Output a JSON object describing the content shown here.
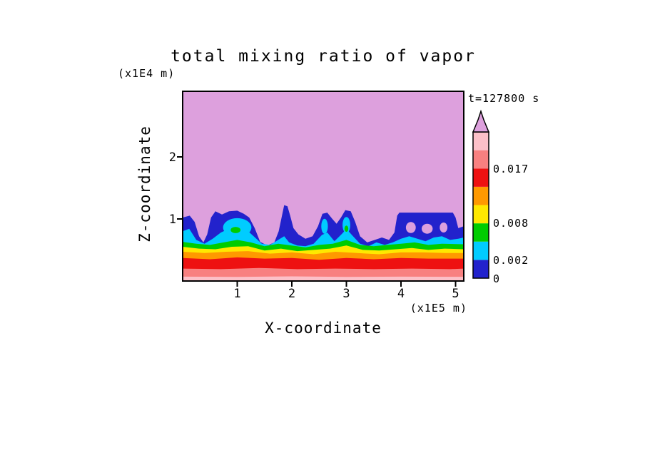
{
  "figure": {
    "title": "total mixing ratio of vapor",
    "time_label": "t=127800 s",
    "y_axis": {
      "label": "Z-coordinate",
      "units_label": "(x1E4 m)",
      "ticks": [
        "1",
        "2"
      ]
    },
    "x_axis": {
      "label": "X-coordinate",
      "units_label": "(x1E5 m)",
      "ticks": [
        "1",
        "2",
        "3",
        "4",
        "5"
      ]
    }
  },
  "colorbar": {
    "labels_top_to_bottom": [
      "0.017",
      "0.008",
      "0.002",
      "0"
    ],
    "arrow_color": "#DDA0DD"
  },
  "chart_data": {
    "type": "heatmap",
    "title": "total mixing ratio of vapor",
    "xlabel": "X-coordinate (x1E5 m)",
    "ylabel": "Z-coordinate (x1E4 m)",
    "time_label": "t=127800 s",
    "x_range": [
      0,
      5.15
    ],
    "z_range": [
      0,
      3.05
    ],
    "x_ticks": [
      1,
      2,
      3,
      4,
      5
    ],
    "z_ticks": [
      1,
      2
    ],
    "contour_levels": [
      0,
      0.002,
      0.005,
      0.008,
      0.011,
      0.014,
      0.017,
      0.02
    ],
    "level_colors_low_to_high": [
      "#2222CC",
      "#00CCFF",
      "#00CC00",
      "#FFE800",
      "#FF9900",
      "#EE1111",
      "#F88080",
      "#FCC0C8"
    ],
    "background_color": "#DDA0DD",
    "bands": [
      {
        "name": "blue-0-0.002",
        "color": "#2222CC",
        "top": [
          [
            0,
            1.02
          ],
          [
            0.13,
            1.05
          ],
          [
            0.22,
            0.95
          ],
          [
            0.3,
            0.72
          ],
          [
            0.38,
            0.62
          ],
          [
            0.45,
            0.75
          ],
          [
            0.52,
            1.02
          ],
          [
            0.6,
            1.12
          ],
          [
            0.72,
            1.07
          ],
          [
            0.85,
            1.12
          ],
          [
            1.0,
            1.13
          ],
          [
            1.12,
            1.08
          ],
          [
            1.22,
            1.02
          ],
          [
            1.32,
            0.85
          ],
          [
            1.42,
            0.63
          ],
          [
            1.55,
            0.57
          ],
          [
            1.68,
            0.62
          ],
          [
            1.76,
            0.8
          ],
          [
            1.82,
            1.05
          ],
          [
            1.86,
            1.22
          ],
          [
            1.92,
            1.2
          ],
          [
            1.97,
            1.05
          ],
          [
            2.03,
            0.85
          ],
          [
            2.12,
            0.75
          ],
          [
            2.25,
            0.68
          ],
          [
            2.38,
            0.72
          ],
          [
            2.48,
            0.88
          ],
          [
            2.56,
            1.08
          ],
          [
            2.65,
            1.1
          ],
          [
            2.74,
            1.0
          ],
          [
            2.82,
            0.92
          ],
          [
            2.9,
            1.02
          ],
          [
            2.98,
            1.14
          ],
          [
            3.08,
            1.12
          ],
          [
            3.16,
            0.95
          ],
          [
            3.25,
            0.72
          ],
          [
            3.38,
            0.62
          ],
          [
            3.52,
            0.66
          ],
          [
            3.65,
            0.7
          ],
          [
            3.78,
            0.66
          ],
          [
            3.88,
            0.78
          ],
          [
            3.93,
            1.05
          ],
          [
            3.97,
            1.1
          ],
          [
            4.3,
            1.1
          ],
          [
            4.6,
            1.1
          ],
          [
            4.95,
            1.1
          ],
          [
            5.0,
            1.02
          ],
          [
            5.05,
            0.85
          ],
          [
            5.15,
            0.88
          ]
        ]
      },
      {
        "name": "cyan-0.002-0.005",
        "color": "#00CCFF",
        "top": [
          [
            0,
            0.8
          ],
          [
            0.12,
            0.84
          ],
          [
            0.25,
            0.66
          ],
          [
            0.4,
            0.6
          ],
          [
            0.55,
            0.68
          ],
          [
            0.7,
            0.78
          ],
          [
            0.85,
            0.84
          ],
          [
            1.0,
            0.88
          ],
          [
            1.15,
            0.84
          ],
          [
            1.3,
            0.72
          ],
          [
            1.45,
            0.6
          ],
          [
            1.6,
            0.58
          ],
          [
            1.75,
            0.66
          ],
          [
            1.86,
            0.72
          ],
          [
            1.95,
            0.62
          ],
          [
            2.1,
            0.57
          ],
          [
            2.25,
            0.56
          ],
          [
            2.4,
            0.6
          ],
          [
            2.55,
            0.74
          ],
          [
            2.65,
            0.78
          ],
          [
            2.78,
            0.64
          ],
          [
            2.92,
            0.76
          ],
          [
            3.0,
            0.84
          ],
          [
            3.1,
            0.74
          ],
          [
            3.25,
            0.6
          ],
          [
            3.4,
            0.56
          ],
          [
            3.55,
            0.62
          ],
          [
            3.7,
            0.58
          ],
          [
            3.85,
            0.62
          ],
          [
            4.0,
            0.68
          ],
          [
            4.15,
            0.72
          ],
          [
            4.3,
            0.68
          ],
          [
            4.45,
            0.64
          ],
          [
            4.6,
            0.7
          ],
          [
            4.75,
            0.72
          ],
          [
            4.9,
            0.66
          ],
          [
            5.05,
            0.68
          ],
          [
            5.15,
            0.7
          ]
        ]
      },
      {
        "name": "green-0.005-0.008",
        "color": "#00CC00",
        "top": [
          [
            0,
            0.63
          ],
          [
            0.25,
            0.6
          ],
          [
            0.5,
            0.58
          ],
          [
            0.75,
            0.62
          ],
          [
            1.0,
            0.66
          ],
          [
            1.25,
            0.62
          ],
          [
            1.5,
            0.56
          ],
          [
            1.75,
            0.6
          ],
          [
            2.0,
            0.57
          ],
          [
            2.25,
            0.54
          ],
          [
            2.5,
            0.58
          ],
          [
            2.75,
            0.6
          ],
          [
            3.0,
            0.66
          ],
          [
            3.25,
            0.58
          ],
          [
            3.5,
            0.56
          ],
          [
            3.75,
            0.58
          ],
          [
            4.0,
            0.6
          ],
          [
            4.25,
            0.62
          ],
          [
            4.5,
            0.58
          ],
          [
            4.75,
            0.6
          ],
          [
            5.15,
            0.59
          ]
        ]
      },
      {
        "name": "yellow-0.008-0.011",
        "color": "#FFE800",
        "top": [
          [
            0,
            0.55
          ],
          [
            0.3,
            0.52
          ],
          [
            0.6,
            0.51
          ],
          [
            0.9,
            0.55
          ],
          [
            1.2,
            0.56
          ],
          [
            1.5,
            0.49
          ],
          [
            1.8,
            0.52
          ],
          [
            2.1,
            0.48
          ],
          [
            2.4,
            0.5
          ],
          [
            2.7,
            0.52
          ],
          [
            3.0,
            0.57
          ],
          [
            3.3,
            0.5
          ],
          [
            3.6,
            0.49
          ],
          [
            3.9,
            0.51
          ],
          [
            4.2,
            0.53
          ],
          [
            4.5,
            0.5
          ],
          [
            4.8,
            0.52
          ],
          [
            5.15,
            0.51
          ]
        ]
      },
      {
        "name": "orange-0.011-0.014",
        "color": "#FF9900",
        "top": [
          [
            0,
            0.47
          ],
          [
            0.4,
            0.45
          ],
          [
            0.8,
            0.47
          ],
          [
            1.2,
            0.48
          ],
          [
            1.6,
            0.44
          ],
          [
            2.0,
            0.46
          ],
          [
            2.4,
            0.43
          ],
          [
            2.8,
            0.47
          ],
          [
            3.2,
            0.45
          ],
          [
            3.6,
            0.43
          ],
          [
            4.0,
            0.46
          ],
          [
            4.4,
            0.46
          ],
          [
            4.8,
            0.45
          ],
          [
            5.15,
            0.45
          ]
        ]
      },
      {
        "name": "red-0.014-0.017",
        "color": "#EE1111",
        "top": [
          [
            0,
            0.37
          ],
          [
            0.5,
            0.35
          ],
          [
            1.0,
            0.38
          ],
          [
            1.5,
            0.36
          ],
          [
            2.0,
            0.37
          ],
          [
            2.5,
            0.34
          ],
          [
            3.0,
            0.37
          ],
          [
            3.5,
            0.35
          ],
          [
            4.0,
            0.37
          ],
          [
            4.5,
            0.36
          ],
          [
            5.15,
            0.36
          ]
        ]
      },
      {
        "name": "salmon-0.017-0.02",
        "color": "#F88080",
        "top": [
          [
            0,
            0.2
          ],
          [
            0.7,
            0.19
          ],
          [
            1.4,
            0.21
          ],
          [
            2.1,
            0.19
          ],
          [
            2.8,
            0.2
          ],
          [
            3.5,
            0.19
          ],
          [
            4.2,
            0.2
          ],
          [
            4.9,
            0.19
          ],
          [
            5.15,
            0.2
          ]
        ]
      },
      {
        "name": "lightpink-gt-0.02",
        "color": "#FCC0C8",
        "top": [
          [
            0,
            0.07
          ],
          [
            1.0,
            0.065
          ],
          [
            2.0,
            0.075
          ],
          [
            3.0,
            0.065
          ],
          [
            4.0,
            0.07
          ],
          [
            5.15,
            0.068
          ]
        ]
      }
    ],
    "blobs": [
      {
        "name": "cyan-core-main-plume",
        "color": "#00CCFF",
        "cx": 1.0,
        "cz": 0.86,
        "rx": 0.26,
        "rz": 0.15
      },
      {
        "name": "green-core-main-plume",
        "color": "#00CC00",
        "cx": 0.97,
        "cz": 0.82,
        "rx": 0.09,
        "rz": 0.05
      },
      {
        "name": "cyan-core-plume-2",
        "color": "#00CCFF",
        "cx": 2.6,
        "cz": 0.88,
        "rx": 0.06,
        "rz": 0.12
      },
      {
        "name": "cyan-core-plume-3",
        "color": "#00CCFF",
        "cx": 3.0,
        "cz": 0.9,
        "rx": 0.07,
        "rz": 0.13
      },
      {
        "name": "green-core-plume-3",
        "color": "#00CC00",
        "cx": 3.0,
        "cz": 0.84,
        "rx": 0.035,
        "rz": 0.05
      },
      {
        "name": "clear-gap-1",
        "color": "#DDA0DD",
        "cx": 4.18,
        "cz": 0.86,
        "rx": 0.09,
        "rz": 0.09
      },
      {
        "name": "clear-gap-2",
        "color": "#DDA0DD",
        "cx": 4.48,
        "cz": 0.84,
        "rx": 0.1,
        "rz": 0.08
      },
      {
        "name": "clear-gap-3",
        "color": "#DDA0DD",
        "cx": 4.78,
        "cz": 0.86,
        "rx": 0.07,
        "rz": 0.08
      }
    ]
  }
}
